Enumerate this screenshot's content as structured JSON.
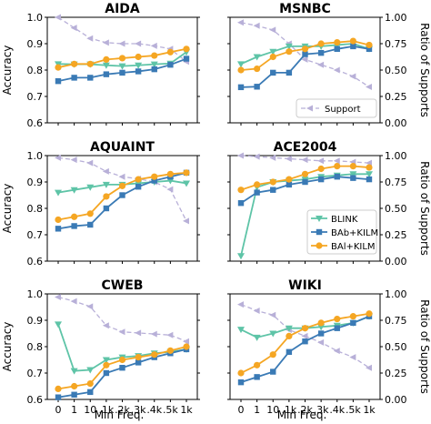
{
  "figure": {
    "left_ylabel": "Accuracy",
    "right_ylabel": "Ratio of Supports",
    "xlabel": "Min Freq."
  },
  "colors": {
    "BLINK": "#5ec4a7",
    "BAb+KILM": "#3a7ab5",
    "BAl+KILM": "#f5a623",
    "Support": "#b8b0d8"
  },
  "legend_top": {
    "series": [
      "Support"
    ],
    "placement": "lower-right of MSNBC panel"
  },
  "legend_main": {
    "series": [
      "BLINK",
      "BAb+KILM",
      "BAl+KILM"
    ],
    "placement": "lower-right of ACE2004 panel"
  },
  "chart_data": [
    {
      "type": "line",
      "title": "AIDA",
      "categories": [
        "0",
        "1",
        "10",
        ".1k",
        ".2k",
        ".3k",
        ".4k",
        ".5k",
        "1k"
      ],
      "ylim": [
        0.6,
        1.0
      ],
      "y2lim": [
        0.0,
        1.0
      ],
      "yticks": [
        "0.6",
        "0.7",
        "0.8",
        "0.9",
        "1.0"
      ],
      "y2ticks": [
        "0.00",
        "0.25",
        "0.50",
        "0.75",
        "1.00"
      ],
      "series": [
        {
          "name": "BLINK",
          "values": [
            0.823,
            0.822,
            0.822,
            0.818,
            0.815,
            0.818,
            0.822,
            0.825,
            0.868
          ]
        },
        {
          "name": "BAb+KILM",
          "values": [
            0.758,
            0.771,
            0.771,
            0.784,
            0.79,
            0.795,
            0.803,
            0.82,
            0.843
          ]
        },
        {
          "name": "BAl+KILM",
          "values": [
            0.81,
            0.823,
            0.823,
            0.84,
            0.845,
            0.85,
            0.855,
            0.868,
            0.88
          ]
        },
        {
          "name": "Support",
          "axis": "right",
          "values": [
            1.0,
            0.9,
            0.8,
            0.76,
            0.75,
            0.75,
            0.73,
            0.7,
            0.58
          ]
        }
      ]
    },
    {
      "type": "line",
      "title": "MSNBC",
      "categories": [
        "0",
        "1",
        "10",
        ".1k",
        ".2k",
        ".3k",
        ".4k",
        ".5k",
        "1k"
      ],
      "ylim": [
        0.6,
        1.0
      ],
      "y2lim": [
        0.0,
        1.0
      ],
      "yticks": [
        "0.6",
        "0.7",
        "0.8",
        "0.9",
        "1.0"
      ],
      "y2ticks": [
        "0.00",
        "0.25",
        "0.50",
        "0.75",
        "1.00"
      ],
      "series": [
        {
          "name": "BLINK",
          "values": [
            0.823,
            0.85,
            0.87,
            0.89,
            0.89,
            0.89,
            0.895,
            0.9,
            0.88
          ]
        },
        {
          "name": "BAb+KILM",
          "values": [
            0.735,
            0.737,
            0.79,
            0.79,
            0.86,
            0.865,
            0.88,
            0.89,
            0.88
          ]
        },
        {
          "name": "BAl+KILM",
          "values": [
            0.8,
            0.805,
            0.85,
            0.87,
            0.88,
            0.9,
            0.905,
            0.91,
            0.895
          ]
        },
        {
          "name": "Support",
          "axis": "right",
          "values": [
            0.95,
            0.92,
            0.88,
            0.75,
            0.6,
            0.55,
            0.5,
            0.44,
            0.34
          ]
        }
      ]
    },
    {
      "type": "line",
      "title": "AQUAINT",
      "categories": [
        "0",
        "1",
        "10",
        ".1k",
        ".2k",
        ".3k",
        ".4k",
        ".5k",
        "1k"
      ],
      "ylim": [
        0.6,
        1.0
      ],
      "y2lim": [
        0.0,
        1.0
      ],
      "yticks": [
        "0.6",
        "0.7",
        "0.8",
        "0.9",
        "1.0"
      ],
      "y2ticks": [
        "0.00",
        "0.25",
        "0.50",
        "0.75",
        "1.00"
      ],
      "series": [
        {
          "name": "BLINK",
          "values": [
            0.86,
            0.87,
            0.88,
            0.89,
            0.89,
            0.895,
            0.9,
            0.905,
            0.895
          ]
        },
        {
          "name": "BAb+KILM",
          "values": [
            0.723,
            0.733,
            0.738,
            0.8,
            0.85,
            0.882,
            0.905,
            0.92,
            0.935
          ]
        },
        {
          "name": "BAl+KILM",
          "values": [
            0.757,
            0.768,
            0.78,
            0.845,
            0.885,
            0.91,
            0.92,
            0.93,
            0.935
          ]
        },
        {
          "name": "Support",
          "axis": "right",
          "values": [
            0.98,
            0.96,
            0.93,
            0.85,
            0.8,
            0.78,
            0.75,
            0.68,
            0.38
          ]
        }
      ]
    },
    {
      "type": "line",
      "title": "ACE2004",
      "categories": [
        "0",
        "1",
        "10",
        ".1k",
        ".2k",
        ".3k",
        ".4k",
        ".5k",
        "1k"
      ],
      "ylim": [
        0.6,
        1.0
      ],
      "y2lim": [
        0.0,
        1.0
      ],
      "yticks": [
        "0.6",
        "0.7",
        "0.8",
        "0.9",
        "1.0"
      ],
      "y2ticks": [
        "0.00",
        "0.25",
        "0.50",
        "0.75",
        "1.00"
      ],
      "series": [
        {
          "name": "BLINK",
          "values": [
            0.62,
            0.88,
            0.9,
            0.905,
            0.91,
            0.92,
            0.925,
            0.93,
            0.93
          ]
        },
        {
          "name": "BAb+KILM",
          "values": [
            0.82,
            0.86,
            0.87,
            0.89,
            0.9,
            0.91,
            0.92,
            0.915,
            0.91
          ]
        },
        {
          "name": "BAl+KILM",
          "values": [
            0.87,
            0.89,
            0.9,
            0.91,
            0.93,
            0.95,
            0.96,
            0.96,
            0.955
          ]
        },
        {
          "name": "Support",
          "axis": "right",
          "values": [
            1.0,
            0.99,
            0.98,
            0.97,
            0.96,
            0.95,
            0.95,
            0.94,
            0.93
          ]
        }
      ]
    },
    {
      "type": "line",
      "title": "CWEB",
      "categories": [
        "0",
        "1",
        "10",
        ".1k",
        ".2k",
        ".3k",
        ".4k",
        ".5k",
        "1k"
      ],
      "ylim": [
        0.6,
        1.0
      ],
      "y2lim": [
        0.0,
        1.0
      ],
      "yticks": [
        "0.6",
        "0.7",
        "0.8",
        "0.9",
        "1.0"
      ],
      "y2ticks": [
        "0.00",
        "0.25",
        "0.50",
        "0.75",
        "1.00"
      ],
      "series": [
        {
          "name": "BLINK",
          "values": [
            0.885,
            0.708,
            0.712,
            0.75,
            0.76,
            0.765,
            0.775,
            0.78,
            0.79
          ]
        },
        {
          "name": "BAb+KILM",
          "values": [
            0.608,
            0.618,
            0.628,
            0.7,
            0.72,
            0.74,
            0.76,
            0.775,
            0.79
          ]
        },
        {
          "name": "BAl+KILM",
          "values": [
            0.64,
            0.65,
            0.66,
            0.73,
            0.75,
            0.76,
            0.77,
            0.785,
            0.8
          ]
        },
        {
          "name": "Support",
          "axis": "right",
          "values": [
            0.97,
            0.93,
            0.88,
            0.7,
            0.64,
            0.63,
            0.62,
            0.61,
            0.55
          ]
        }
      ]
    },
    {
      "type": "line",
      "title": "WIKI",
      "categories": [
        "0",
        "1",
        "10",
        ".1k",
        ".2k",
        ".3k",
        ".4k",
        ".5k",
        "1k"
      ],
      "ylim": [
        0.6,
        1.0
      ],
      "y2lim": [
        0.0,
        1.0
      ],
      "yticks": [
        "0.6",
        "0.7",
        "0.8",
        "0.9",
        "1.0"
      ],
      "y2ticks": [
        "0.00",
        "0.25",
        "0.50",
        "0.75",
        "1.00"
      ],
      "series": [
        {
          "name": "BLINK",
          "values": [
            0.865,
            0.835,
            0.85,
            0.87,
            0.87,
            0.875,
            0.88,
            0.89,
            0.915
          ]
        },
        {
          "name": "BAb+KILM",
          "values": [
            0.665,
            0.685,
            0.705,
            0.78,
            0.82,
            0.85,
            0.87,
            0.89,
            0.915
          ]
        },
        {
          "name": "BAl+KILM",
          "values": [
            0.7,
            0.73,
            0.77,
            0.84,
            0.87,
            0.89,
            0.905,
            0.915,
            0.925
          ]
        },
        {
          "name": "Support",
          "axis": "right",
          "values": [
            0.9,
            0.84,
            0.8,
            0.66,
            0.6,
            0.54,
            0.46,
            0.4,
            0.3
          ]
        }
      ]
    }
  ]
}
